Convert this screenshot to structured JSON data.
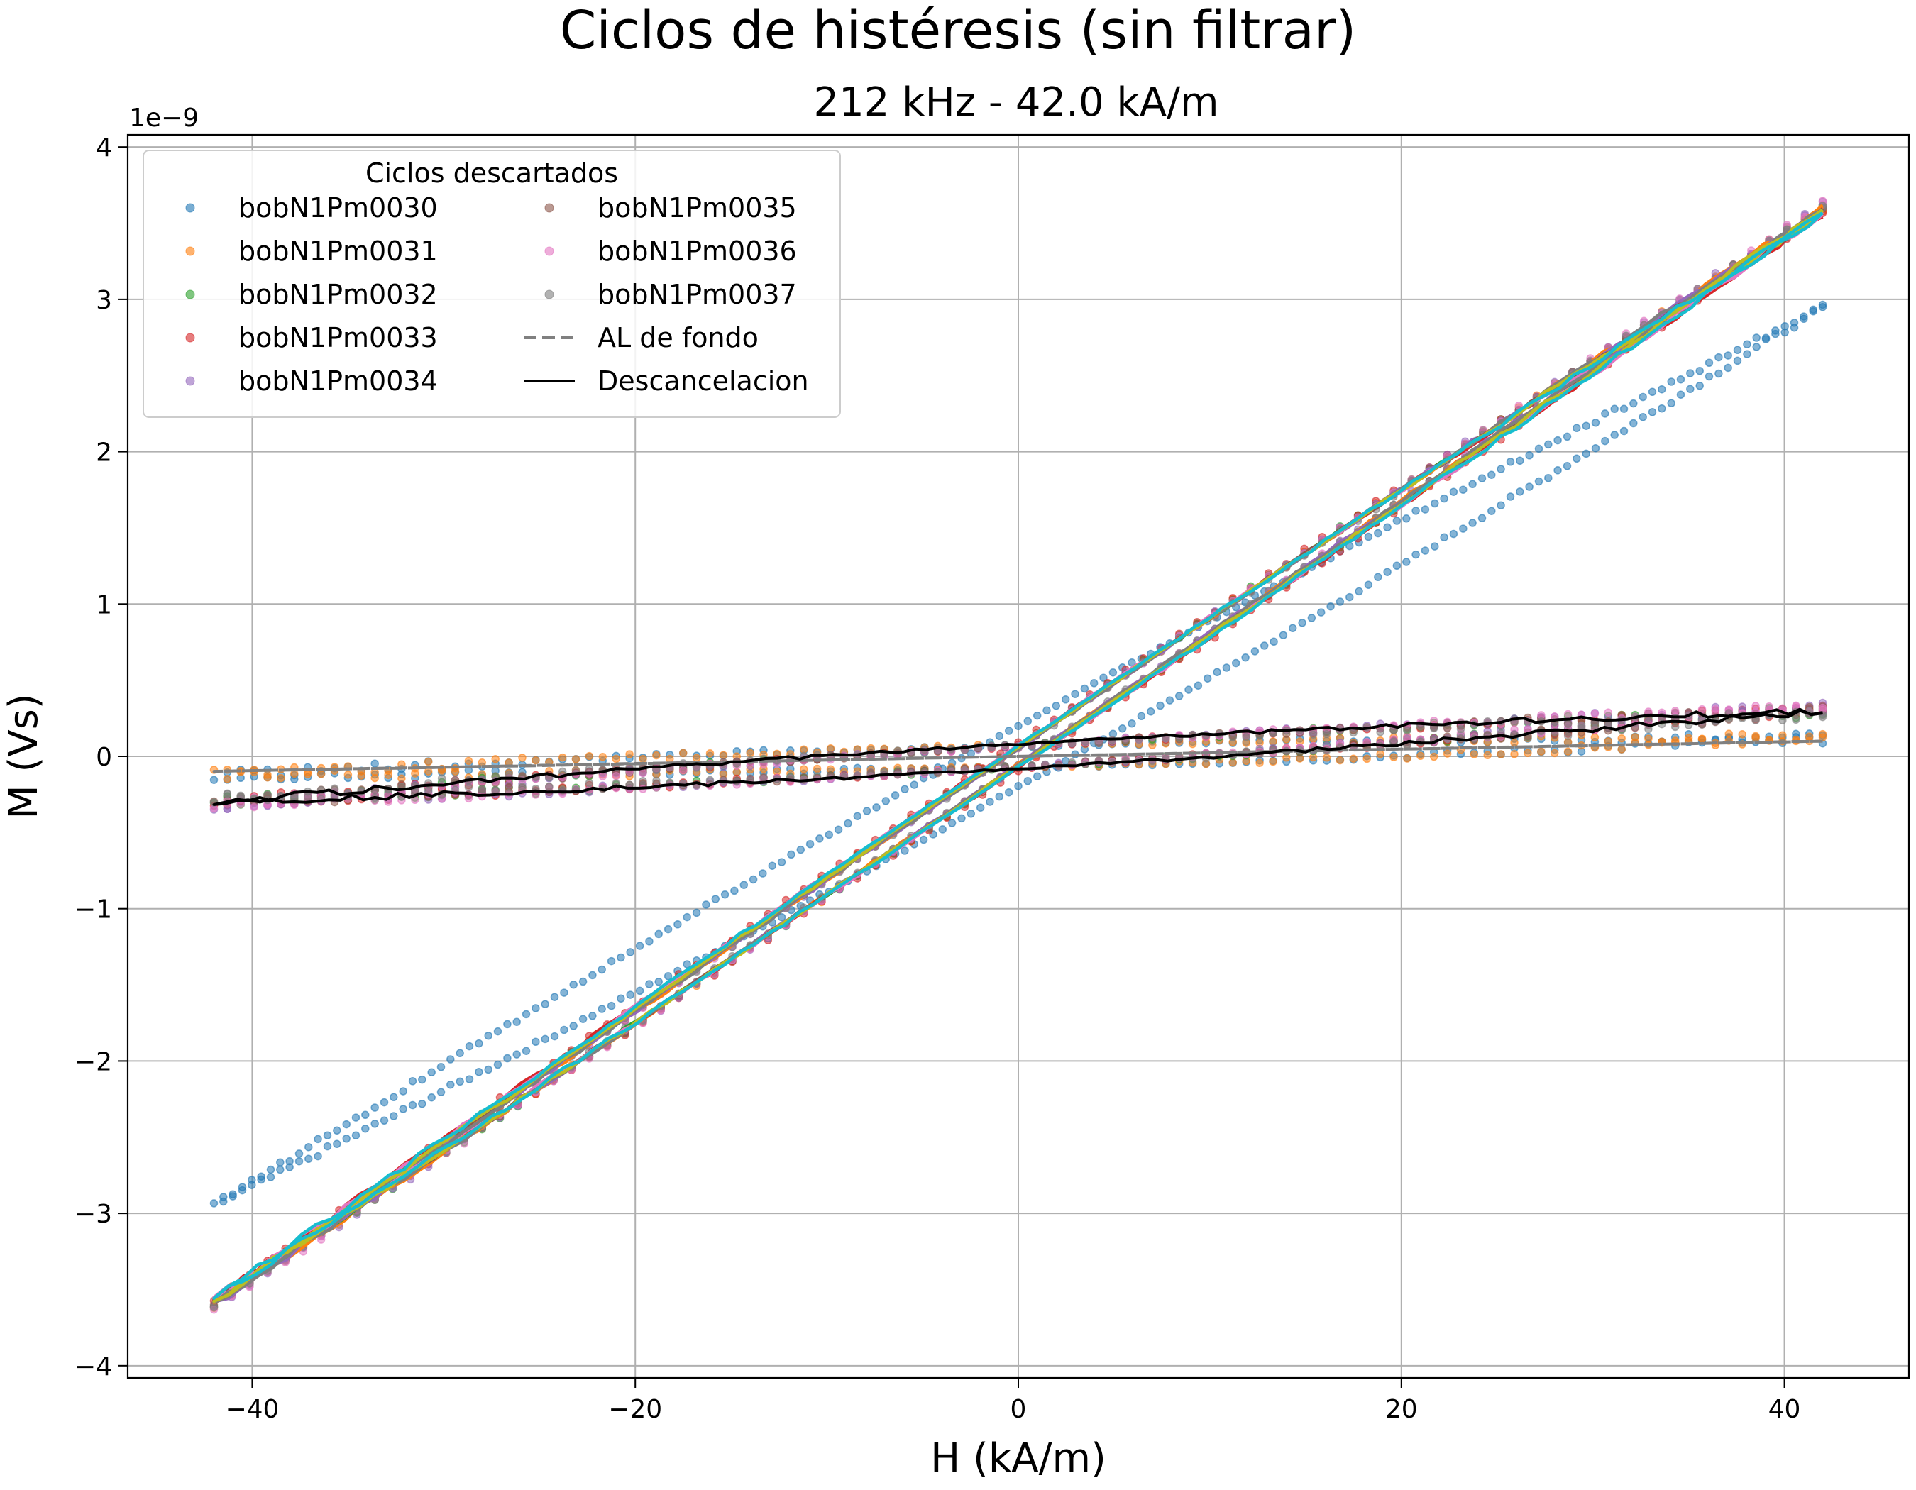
{
  "chart_data": {
    "type": "scatter",
    "title": "Ciclos de histéresis (sin filtrar)",
    "subtitle": "212 kHz - 42.0 kA/m",
    "xlabel": "H (kA/m)",
    "ylabel": "M (Vs)",
    "y_offset_label": "1e−9",
    "xlim": [
      -46.5,
      46.5
    ],
    "ylim": [
      -4.08,
      4.08
    ],
    "x_ticks": [
      -40,
      -20,
      0,
      20,
      40
    ],
    "x_tick_labels": [
      "−40",
      "−20",
      "0",
      "20",
      "40"
    ],
    "y_ticks": [
      -4,
      -3,
      -2,
      -1,
      0,
      1,
      2,
      3,
      4
    ],
    "y_tick_labels": [
      "−4",
      "−3",
      "−2",
      "−1",
      "0",
      "1",
      "2",
      "3",
      "4"
    ],
    "grid": true,
    "legend": {
      "title": "Ciclos descartados",
      "position": "upper-left",
      "columns": 2
    },
    "series": [
      {
        "name": "bobN1Pm0030",
        "color": "#1f77b4",
        "style": "markers",
        "amplitude": 2.95,
        "loop_offset": 0.2
      },
      {
        "name": "bobN1Pm0031",
        "color": "#ff7f0e",
        "style": "markers",
        "amplitude": 3.6,
        "loop_offset": 0.07
      },
      {
        "name": "bobN1Pm0032",
        "color": "#2ca02c",
        "style": "markers",
        "amplitude": 3.6,
        "loop_offset": 0.07
      },
      {
        "name": "bobN1Pm0033",
        "color": "#d62728",
        "style": "markers",
        "amplitude": 3.58,
        "loop_offset": 0.09
      },
      {
        "name": "bobN1Pm0034",
        "color": "#9467bd",
        "style": "markers",
        "amplitude": 3.62,
        "loop_offset": 0.06
      },
      {
        "name": "bobN1Pm0035",
        "color": "#8c564b",
        "style": "markers",
        "amplitude": 3.6,
        "loop_offset": 0.06
      },
      {
        "name": "bobN1Pm0036",
        "color": "#e377c2",
        "style": "markers",
        "amplitude": 3.62,
        "loop_offset": 0.06
      },
      {
        "name": "bobN1Pm0037",
        "color": "#7f7f7f",
        "style": "markers",
        "amplitude": 3.6,
        "loop_offset": 0.05
      },
      {
        "name": "AL de fondo",
        "color": "#808080",
        "style": "dashed",
        "endpoint": [
          42,
          0.1
        ],
        "loop_offset": 0.0
      },
      {
        "name": "Descancelacion",
        "color": "#000000",
        "style": "line",
        "endpoint": [
          42,
          0.3
        ],
        "loop_offset": 0.08
      }
    ],
    "unlabeled_line_colors": [
      "#ff7f0e",
      "#2ca02c",
      "#d62728",
      "#9467bd",
      "#8c564b",
      "#e377c2",
      "#7f7f7f",
      "#bcbd22",
      "#17becf"
    ],
    "h_max": 42
  }
}
